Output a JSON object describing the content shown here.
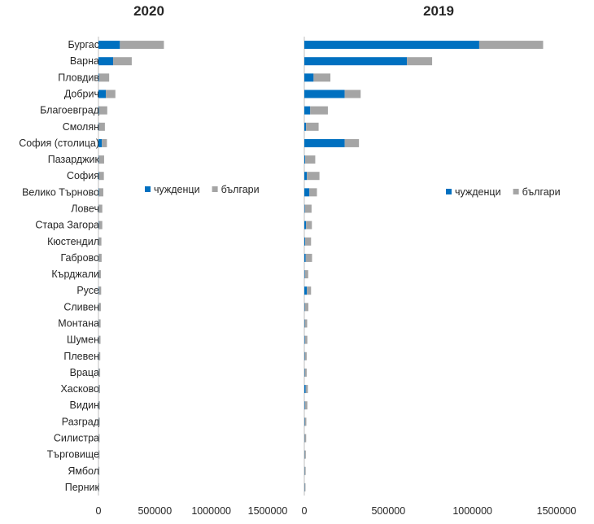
{
  "chart_data": [
    {
      "type": "bar",
      "orientation": "horizontal",
      "stacked": true,
      "title": "2020",
      "categories": [
        "Бургас",
        "Варна",
        "Пловдив",
        "Добрич",
        "Благоевград",
        "Смолян",
        "София (столица)",
        "Пазарджик",
        "София",
        "Велико Търново",
        "Ловеч",
        "Стара Загора",
        "Кюстендил",
        "Габрово",
        "Кърджали",
        "Русе",
        "Сливен",
        "Монтана",
        "Шумен",
        "Плевен",
        "Враца",
        "Хасково",
        "Видин",
        "Разград",
        "Силистра",
        "Търговище",
        "Ямбол",
        "Перник"
      ],
      "series": [
        {
          "name": "чужденци",
          "color": "#0070c0",
          "values": [
            190000,
            130000,
            5000,
            65000,
            3000,
            2000,
            30000,
            2000,
            3000,
            3000,
            1000,
            2000,
            1000,
            1000,
            1000,
            2000,
            1000,
            1000,
            1000,
            1000,
            1000,
            1000,
            1000,
            1000,
            500,
            500,
            500,
            500
          ]
        },
        {
          "name": "българи",
          "color": "#a5a5a5",
          "values": [
            390000,
            165000,
            90000,
            85000,
            75000,
            55000,
            45000,
            48000,
            45000,
            40000,
            33000,
            32000,
            25000,
            27000,
            20000,
            22000,
            20000,
            18000,
            17000,
            15000,
            14000,
            13000,
            12000,
            11000,
            10000,
            9000,
            8000,
            7000
          ]
        }
      ],
      "xticks": [
        "0",
        "500000",
        "1000000",
        "1500000"
      ],
      "xlim": [
        0,
        1500000
      ],
      "legend": "middle"
    },
    {
      "type": "bar",
      "orientation": "horizontal",
      "stacked": true,
      "title": "2019",
      "categories": [
        "Бургас",
        "Варна",
        "Пловдив",
        "Добрич",
        "Благоевград",
        "Смолян",
        "София (столица)",
        "Пазарджик",
        "София",
        "Велико Търново",
        "Ловеч",
        "Стара Загора",
        "Кюстендил",
        "Габрово",
        "Кърджали",
        "Русе",
        "Сливен",
        "Монтана",
        "Шумен",
        "Плевен",
        "Враца",
        "Хасково",
        "Видин",
        "Разград",
        "Силистра",
        "Търговище",
        "Ямбол",
        "Перник"
      ],
      "series": [
        {
          "name": "чужденци",
          "color": "#0070c0",
          "values": [
            1040000,
            610000,
            55000,
            240000,
            35000,
            10000,
            240000,
            5000,
            15000,
            30000,
            3000,
            10000,
            5000,
            8000,
            3000,
            15000,
            2000,
            2000,
            3000,
            2000,
            2000,
            8000,
            3000,
            2000,
            1000,
            1000,
            1000,
            1000
          ]
        },
        {
          "name": "българи",
          "color": "#a5a5a5",
          "values": [
            380000,
            150000,
            100000,
            95000,
            105000,
            75000,
            85000,
            60000,
            75000,
            45000,
            40000,
            35000,
            35000,
            38000,
            20000,
            25000,
            22000,
            15000,
            15000,
            12000,
            12000,
            13000,
            15000,
            10000,
            10000,
            8000,
            7000,
            6000
          ]
        }
      ],
      "xticks": [
        "0",
        "500000",
        "1000000",
        "1500000"
      ],
      "xlim": [
        0,
        1500000
      ],
      "legend": "middle"
    }
  ]
}
